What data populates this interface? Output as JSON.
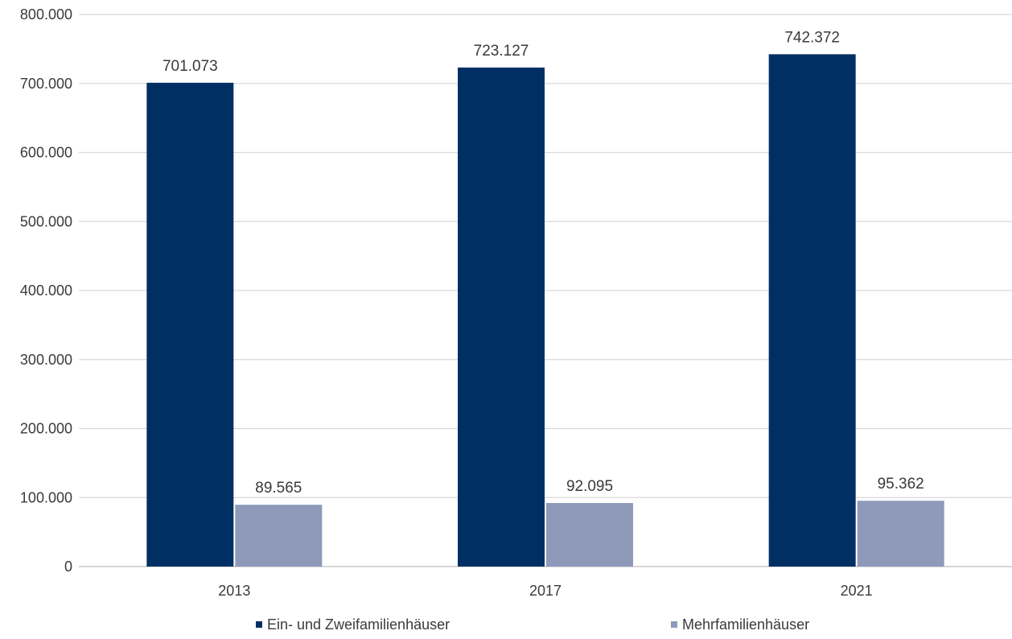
{
  "chart_data": {
    "type": "bar",
    "title": "",
    "xlabel": "",
    "ylabel": "",
    "categories": [
      "2013",
      "2017",
      "2021"
    ],
    "series": [
      {
        "name": "Ein- und Zweifamilienhäuser",
        "color": "#003063",
        "values": [
          701073,
          723127,
          742372
        ],
        "labels": [
          "701.073",
          "723.127",
          "742.372"
        ]
      },
      {
        "name": "Mehrfamilienhäuser",
        "color": "#8f9aba",
        "values": [
          89565,
          92095,
          95362
        ],
        "labels": [
          "89.565",
          "92.095",
          "95.362"
        ]
      }
    ],
    "ylim": [
      0,
      800000
    ],
    "yticks": [
      0,
      100000,
      200000,
      300000,
      400000,
      500000,
      600000,
      700000,
      800000
    ],
    "ytick_labels": [
      "0",
      "100.000",
      "200.000",
      "300.000",
      "400.000",
      "500.000",
      "600.000",
      "700.000",
      "800.000"
    ],
    "grid": true,
    "legend_position": "bottom"
  }
}
